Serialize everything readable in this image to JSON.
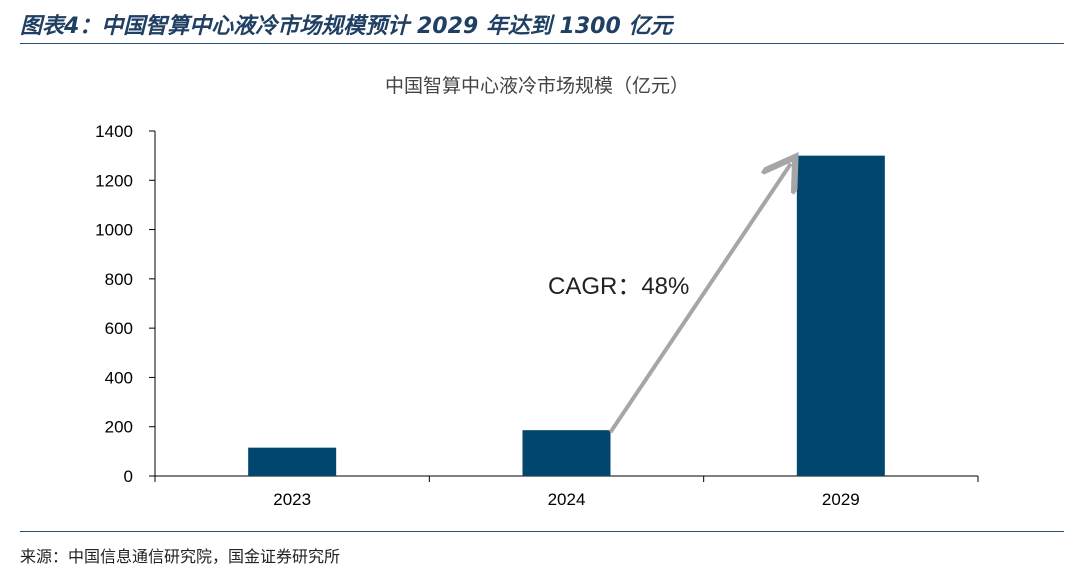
{
  "figure": {
    "title": "图表4：中国智算中心液冷市场规模预计 2029 年达到 1300 亿元",
    "source": "来源：中国信息通信研究院，国金证券研究所"
  },
  "colors": {
    "bar": "#01466e",
    "arrow": "#a6a6a6",
    "axis": "#000000",
    "rule": "#2b4f72",
    "title": "#1f3f63"
  },
  "chart_data": {
    "type": "bar",
    "title": "中国智算中心液冷市场规模（亿元）",
    "categories": [
      "2023",
      "2024",
      "2029"
    ],
    "values": [
      115,
      186,
      1300
    ],
    "ylim": [
      0,
      1400
    ],
    "yticks": [
      0,
      200,
      400,
      600,
      800,
      1000,
      1200,
      1400
    ],
    "xlabel": "",
    "ylabel": "",
    "grid": false,
    "legend": "none",
    "annotation": {
      "text": "CAGR：48%",
      "from_category": "2024",
      "to_category": "2029"
    }
  }
}
